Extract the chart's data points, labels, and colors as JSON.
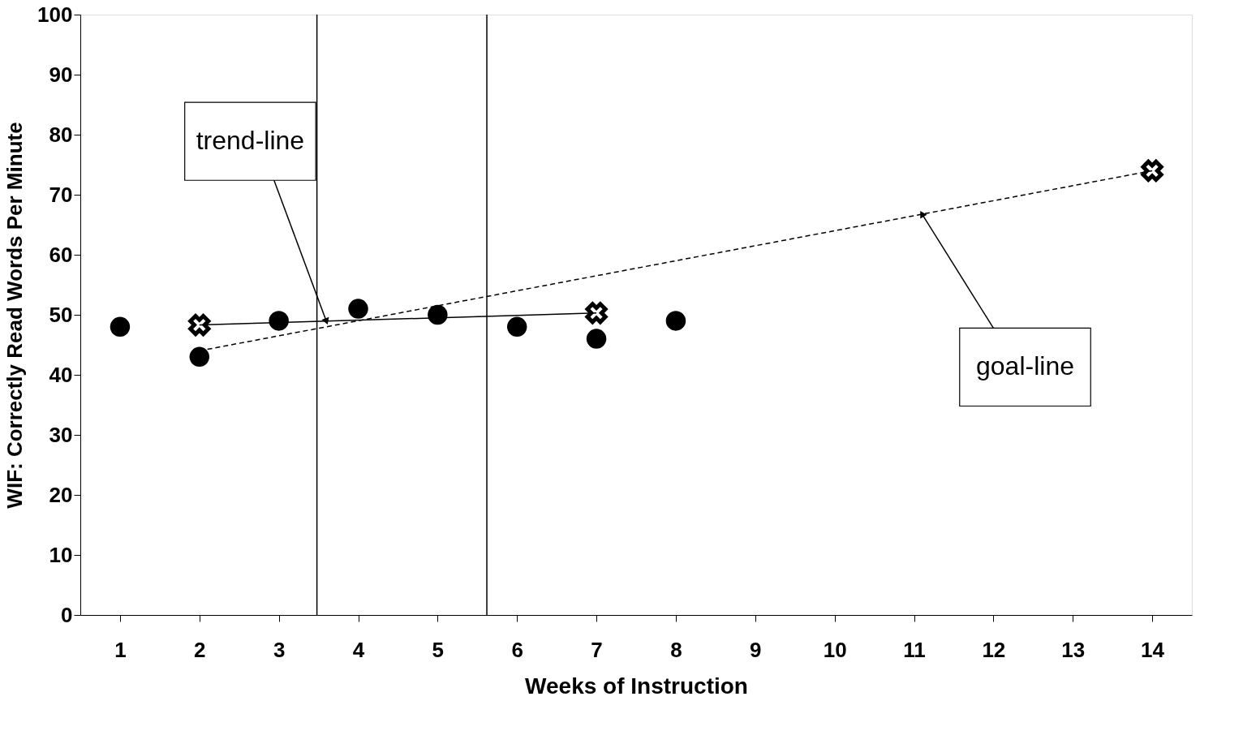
{
  "chart_data": {
    "type": "scatter",
    "xlabel": "Weeks of Instruction",
    "ylabel": "WIF: Correctly Read Words Per Minute",
    "xlim": [
      0.5,
      14.5
    ],
    "xticks": [
      1,
      2,
      3,
      4,
      5,
      6,
      7,
      8,
      9,
      10,
      11,
      12,
      13,
      14
    ],
    "ylim": [
      0,
      100
    ],
    "yticks": [
      0,
      10,
      20,
      30,
      40,
      50,
      60,
      70,
      80,
      90,
      100
    ],
    "grid": false,
    "series": [
      {
        "color": "#000000",
        "marker": "circle",
        "x": [
          1,
          2,
          3,
          4,
          5,
          6,
          7,
          8
        ],
        "values": [
          48,
          43,
          49,
          51,
          50,
          48,
          46,
          49
        ]
      },
      {
        "type": "line",
        "color": "#000000",
        "marker": "cross",
        "line_style": "solid",
        "x": [
          2,
          7
        ],
        "values": [
          48.3,
          50.3
        ]
      },
      {
        "type": "line",
        "color": "#000000",
        "marker": "none",
        "line_style": "dashed",
        "x": [
          2,
          14
        ],
        "values": [
          44,
          74
        ]
      },
      {
        "type": "scatter",
        "color": "#000000",
        "marker": "cross",
        "x": [
          14
        ],
        "values": [
          74
        ]
      }
    ],
    "ref_lines": [
      {
        "axis": "x",
        "value": 3.48,
        "color": "#000000"
      },
      {
        "axis": "x",
        "value": 5.62,
        "color": "#000000"
      }
    ],
    "annotations": [
      {
        "text": "trend-line",
        "x": 3.6,
        "y": 48.9
      },
      {
        "text": "goal-line",
        "x": 11.1,
        "y": 66.8
      }
    ]
  }
}
